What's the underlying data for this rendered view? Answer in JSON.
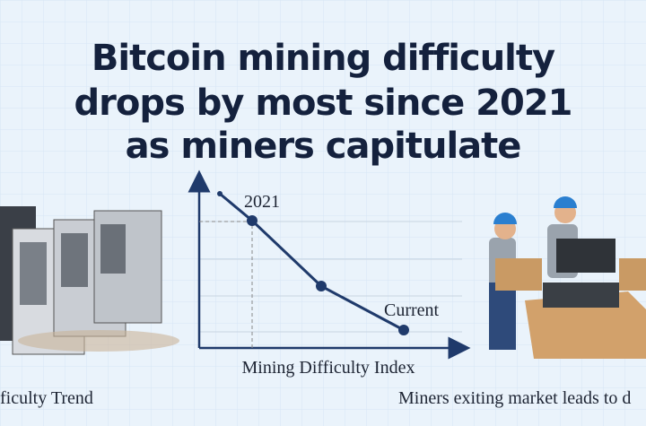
{
  "header": {
    "title_lines": [
      "Bitcoin mining difficulty",
      "drops by most since 2021",
      "as miners capitulate"
    ]
  },
  "diagram": {
    "point_labels": [
      "2021",
      "Current"
    ],
    "axis_label": "Mining Difficulty Index"
  },
  "captions": {
    "left": "ficulty Trend",
    "right": "Miners exiting market leads to d"
  }
}
